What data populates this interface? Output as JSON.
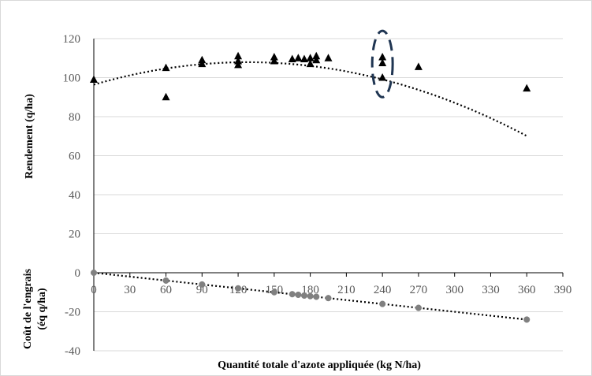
{
  "chart_data": {
    "type": "scatter",
    "xlabel": "Quantité totale d'azote appliquée  (kg N/ha)",
    "ylabel_top": "Rendement  (q/ha)",
    "ylabel_bottom_line1": "Coût de l'engrais",
    "ylabel_bottom_line2": "(éq q/ha)",
    "xlim": [
      0,
      390
    ],
    "ylim": [
      -40,
      120
    ],
    "x_ticks": [
      "0",
      "30",
      "60",
      "90",
      "120",
      "150",
      "180",
      "210",
      "240",
      "270",
      "300",
      "330",
      "360",
      "390"
    ],
    "y_ticks": [
      "-40",
      "-20",
      "0",
      "20",
      "40",
      "60",
      "80",
      "100",
      "120"
    ],
    "grid": "horizontal",
    "series": [
      {
        "marker": "triangle",
        "color": "#000000",
        "trendline": "polynomial",
        "points": [
          [
            0,
            99
          ],
          [
            60,
            105
          ],
          [
            60,
            90
          ],
          [
            90,
            107
          ],
          [
            90,
            109
          ],
          [
            120,
            106.5
          ],
          [
            120,
            108.5
          ],
          [
            120,
            111
          ],
          [
            150,
            108.5
          ],
          [
            150,
            110.5
          ],
          [
            165,
            109.5
          ],
          [
            170,
            110
          ],
          [
            175,
            109.5
          ],
          [
            180,
            107
          ],
          [
            180,
            110
          ],
          [
            185,
            109
          ],
          [
            185,
            111
          ],
          [
            195,
            110
          ],
          [
            240,
            100
          ],
          [
            240,
            107.5
          ],
          [
            240,
            110.5
          ],
          [
            270,
            105.5
          ],
          [
            360,
            94.5
          ]
        ],
        "trend_coefficients": [
          96.4,
          0.18,
          -0.000703
        ]
      },
      {
        "marker": "circle",
        "color": "#808080",
        "trendline": "linear",
        "points": [
          [
            0,
            0
          ],
          [
            60,
            -4
          ],
          [
            90,
            -6
          ],
          [
            120,
            -8
          ],
          [
            150,
            -10
          ],
          [
            165,
            -11
          ],
          [
            170,
            -11.3
          ],
          [
            175,
            -11.7
          ],
          [
            180,
            -12
          ],
          [
            185,
            -12.3
          ],
          [
            195,
            -13
          ],
          [
            240,
            -16
          ],
          [
            270,
            -18
          ],
          [
            360,
            -24
          ]
        ],
        "trend_coefficients": [
          0,
          -0.0667
        ]
      }
    ],
    "annotations": [
      {
        "type": "dashed-ellipse",
        "color": "#1f3552",
        "center": [
          240,
          107
        ],
        "rx_data": 8.5,
        "ry_data": 17
      }
    ]
  }
}
